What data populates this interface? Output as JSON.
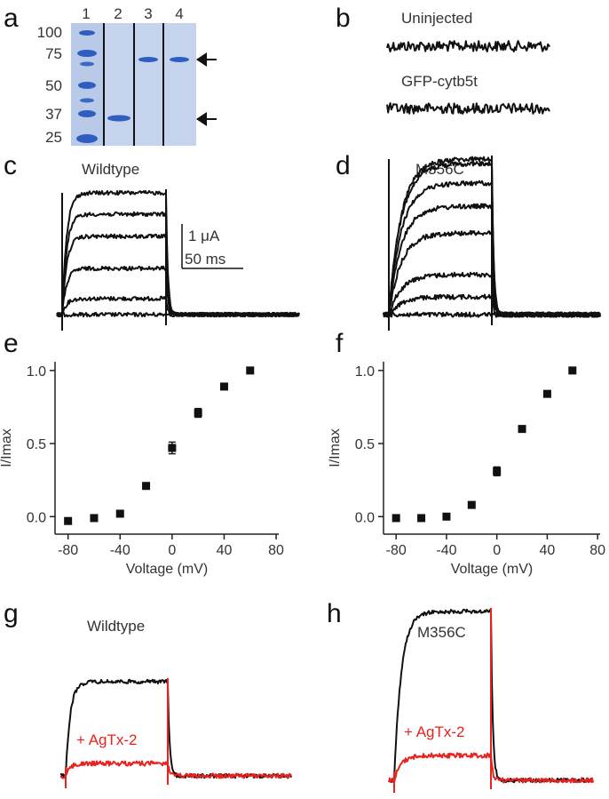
{
  "panel_labels": {
    "a": "a",
    "b": "b",
    "c": "c",
    "d": "d",
    "e": "e",
    "f": "f",
    "g": "g",
    "h": "h"
  },
  "gel": {
    "lane_numbers": [
      "1",
      "2",
      "3",
      "4"
    ],
    "markers": [
      "100",
      "75",
      "50",
      "37",
      "25"
    ]
  },
  "panel_b": {
    "label1": "Uninjected",
    "label2": "GFP-cytb5t"
  },
  "panel_c": {
    "title": "Wildtype",
    "scale_current": "1 μA",
    "scale_time": "50 ms"
  },
  "panel_d": {
    "title": "M356C"
  },
  "panel_g": {
    "label_black": "Wildtype",
    "label_red": "+ AgTx-2"
  },
  "panel_h": {
    "label_black": "M356C",
    "label_red": "+ AgTx-2"
  },
  "colors": {
    "trace": "#111111",
    "toxin": "#e8221f",
    "gel_bg": "#c5d3ec",
    "band": "#2e5ec0"
  },
  "chart_data": [
    {
      "type": "scatter",
      "panel": "e",
      "x": [
        -80,
        -60,
        -40,
        -20,
        0,
        20,
        40,
        60
      ],
      "y": [
        -0.03,
        -0.01,
        0.02,
        0.21,
        0.47,
        0.71,
        0.89,
        1.0
      ],
      "err": [
        0.01,
        0.01,
        0.01,
        0.01,
        0.04,
        0.03,
        0.02,
        0.0
      ],
      "xlabel": "Voltage (mV)",
      "ylabel": "I/Imax",
      "xlim": [
        -90,
        82
      ],
      "ylim": [
        -0.12,
        1.06
      ],
      "xticks": [
        -80,
        -40,
        0,
        40,
        80
      ],
      "xtick_labels": [
        "-80",
        "-40",
        "0",
        "40",
        "80"
      ],
      "yticks": [
        0.0,
        0.5,
        1.0
      ],
      "ytick_labels": [
        "0.0",
        "0.5",
        "1.0"
      ]
    },
    {
      "type": "scatter",
      "panel": "f",
      "x": [
        -80,
        -60,
        -40,
        -20,
        0,
        20,
        40,
        60
      ],
      "y": [
        -0.01,
        -0.01,
        0.0,
        0.08,
        0.31,
        0.6,
        0.84,
        1.0
      ],
      "err": [
        0.0,
        0.0,
        0.0,
        0.01,
        0.03,
        0.01,
        0.01,
        0.0
      ],
      "xlabel": "Voltage (mV)",
      "ylabel": "I/Imax",
      "xlim": [
        -90,
        82
      ],
      "ylim": [
        -0.12,
        1.06
      ],
      "xticks": [
        -80,
        -40,
        0,
        40,
        80
      ],
      "xtick_labels": [
        "-80",
        "-40",
        "0",
        "40",
        "80"
      ],
      "yticks": [
        0.0,
        0.5,
        1.0
      ],
      "ytick_labels": [
        "0.0",
        "0.5",
        "1.0"
      ]
    }
  ]
}
